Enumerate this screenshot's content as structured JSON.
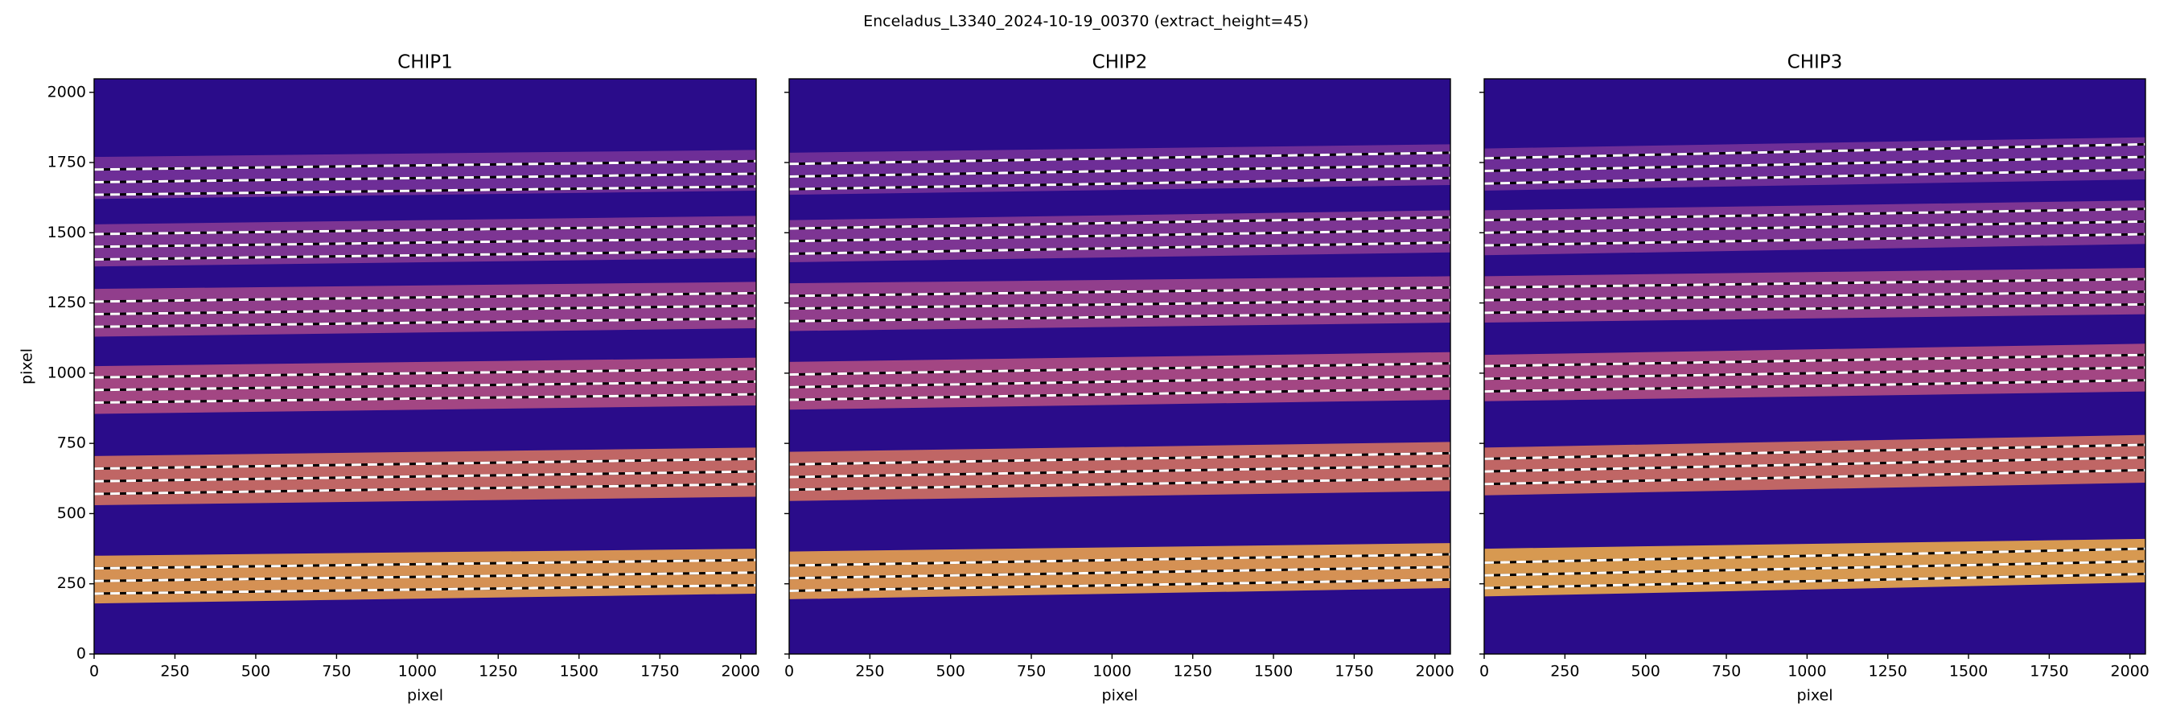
{
  "chart_data": [
    {
      "type": "image",
      "title": "Enceladus_L3340_2024-10-19_00370  (extract_height=45)",
      "subtitle": "CHIP1",
      "xlabel": "pixel",
      "ylabel": "pixel",
      "xlim": [
        0,
        2048
      ],
      "ylim": [
        0,
        2048
      ],
      "xticks": [
        0,
        250,
        500,
        750,
        1000,
        1250,
        1500,
        1750,
        2000
      ],
      "yticks": [
        0,
        250,
        500,
        750,
        1000,
        1250,
        1500,
        1750,
        2000
      ],
      "show_ytick_labels": true,
      "background": "#2a0c8a",
      "orders": [
        {
          "lower": [
            180,
            215
          ],
          "upper": [
            350,
            375
          ],
          "traces": [
            [
              215,
              245
            ],
            [
              260,
              290
            ],
            [
              305,
              335
            ]
          ],
          "color": "#e8a04e"
        },
        {
          "lower": [
            530,
            560
          ],
          "upper": [
            705,
            735
          ],
          "traces": [
            [
              570,
              605
            ],
            [
              615,
              650
            ],
            [
              660,
              695
            ]
          ],
          "color": "#d07060"
        },
        {
          "lower": [
            855,
            885
          ],
          "upper": [
            1025,
            1055
          ],
          "traces": [
            [
              895,
              925
            ],
            [
              940,
              970
            ],
            [
              985,
              1015
            ]
          ],
          "color": "#b04c82"
        },
        {
          "lower": [
            1130,
            1160
          ],
          "upper": [
            1300,
            1325
          ],
          "traces": [
            [
              1165,
              1195
            ],
            [
              1210,
              1240
            ],
            [
              1255,
              1285
            ]
          ],
          "color": "#9c448c"
        },
        {
          "lower": [
            1380,
            1410
          ],
          "upper": [
            1530,
            1560
          ],
          "traces": [
            [
              1405,
              1435
            ],
            [
              1450,
              1480
            ],
            [
              1495,
              1525
            ]
          ],
          "color": "#863a94"
        },
        {
          "lower": [
            1620,
            1650
          ],
          "upper": [
            1770,
            1795
          ],
          "traces": [
            [
              1635,
              1665
            ],
            [
              1680,
              1710
            ],
            [
              1725,
              1755
            ]
          ],
          "color": "#763298"
        }
      ]
    },
    {
      "type": "image",
      "subtitle": "CHIP2",
      "xlabel": "pixel",
      "xlim": [
        0,
        2048
      ],
      "ylim": [
        0,
        2048
      ],
      "xticks": [
        0,
        250,
        500,
        750,
        1000,
        1250,
        1500,
        1750,
        2000
      ],
      "yticks": [
        0,
        250,
        500,
        750,
        1000,
        1250,
        1500,
        1750,
        2000
      ],
      "show_ytick_labels": false,
      "background": "#2a0c8a",
      "orders": [
        {
          "lower": [
            195,
            235
          ],
          "upper": [
            365,
            395
          ],
          "traces": [
            [
              225,
              265
            ],
            [
              270,
              310
            ],
            [
              315,
              355
            ]
          ],
          "color": "#e8a04e"
        },
        {
          "lower": [
            545,
            580
          ],
          "upper": [
            720,
            755
          ],
          "traces": [
            [
              585,
              625
            ],
            [
              630,
              670
            ],
            [
              675,
              715
            ]
          ],
          "color": "#d07060"
        },
        {
          "lower": [
            870,
            905
          ],
          "upper": [
            1040,
            1075
          ],
          "traces": [
            [
              905,
              945
            ],
            [
              950,
              990
            ],
            [
              995,
              1035
            ]
          ],
          "color": "#b04c82"
        },
        {
          "lower": [
            1150,
            1180
          ],
          "upper": [
            1320,
            1345
          ],
          "traces": [
            [
              1185,
              1215
            ],
            [
              1230,
              1260
            ],
            [
              1275,
              1305
            ]
          ],
          "color": "#9c448c"
        },
        {
          "lower": [
            1395,
            1430
          ],
          "upper": [
            1545,
            1580
          ],
          "traces": [
            [
              1425,
              1465
            ],
            [
              1470,
              1510
            ],
            [
              1515,
              1555
            ]
          ],
          "color": "#863a94"
        },
        {
          "lower": [
            1635,
            1670
          ],
          "upper": [
            1785,
            1815
          ],
          "traces": [
            [
              1655,
              1695
            ],
            [
              1700,
              1740
            ],
            [
              1745,
              1785
            ]
          ],
          "color": "#763298"
        }
      ]
    },
    {
      "type": "image",
      "subtitle": "CHIP3",
      "xlabel": "pixel",
      "xlim": [
        0,
        2048
      ],
      "ylim": [
        0,
        2048
      ],
      "xticks": [
        0,
        250,
        500,
        750,
        1000,
        1250,
        1500,
        1750,
        2000
      ],
      "yticks": [
        0,
        250,
        500,
        750,
        1000,
        1250,
        1500,
        1750,
        2000
      ],
      "show_ytick_labels": false,
      "background": "#2a0c8a",
      "orders": [
        {
          "lower": [
            205,
            255
          ],
          "upper": [
            375,
            410
          ],
          "traces": [
            [
              235,
              285
            ],
            [
              280,
              330
            ],
            [
              325,
              375
            ]
          ],
          "color": "#eaa84a"
        },
        {
          "lower": [
            565,
            610
          ],
          "upper": [
            735,
            780
          ],
          "traces": [
            [
              605,
              655
            ],
            [
              650,
              700
            ],
            [
              695,
              745
            ]
          ],
          "color": "#d07060"
        },
        {
          "lower": [
            900,
            935
          ],
          "upper": [
            1065,
            1105
          ],
          "traces": [
            [
              935,
              975
            ],
            [
              980,
              1020
            ],
            [
              1025,
              1065
            ]
          ],
          "color": "#b04c82"
        },
        {
          "lower": [
            1180,
            1210
          ],
          "upper": [
            1345,
            1375
          ],
          "traces": [
            [
              1215,
              1245
            ],
            [
              1260,
              1290
            ],
            [
              1305,
              1335
            ]
          ],
          "color": "#9c448c"
        },
        {
          "lower": [
            1420,
            1460
          ],
          "upper": [
            1580,
            1615
          ],
          "traces": [
            [
              1455,
              1495
            ],
            [
              1500,
              1540
            ],
            [
              1545,
              1585
            ]
          ],
          "color": "#863a94"
        },
        {
          "lower": [
            1650,
            1690
          ],
          "upper": [
            1800,
            1840
          ],
          "traces": [
            [
              1675,
              1725
            ],
            [
              1720,
              1770
            ],
            [
              1765,
              1815
            ]
          ],
          "color": "#763298"
        }
      ]
    }
  ]
}
